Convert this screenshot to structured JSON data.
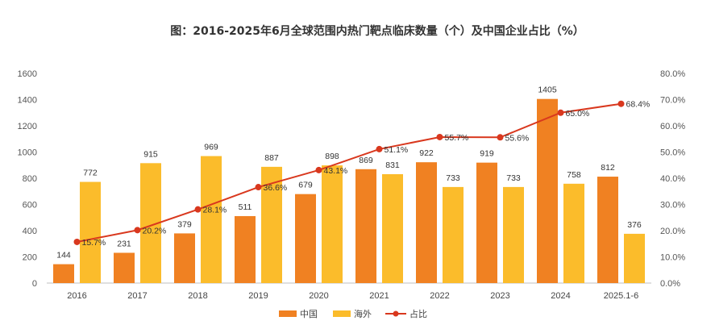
{
  "chart_data": {
    "type": "bar",
    "title": "图：2016-2025年6月全球范围内热门靶点临床数量（个）及中国企业占比（%）",
    "categories": [
      "2016",
      "2017",
      "2018",
      "2019",
      "2020",
      "2021",
      "2022",
      "2023",
      "2024",
      "2025.1-6"
    ],
    "series": [
      {
        "name": "中国",
        "type": "bar",
        "axis": "left",
        "color": "#F08122",
        "values": [
          144,
          231,
          379,
          511,
          679,
          869,
          922,
          919,
          1405,
          812
        ]
      },
      {
        "name": "海外",
        "type": "bar",
        "axis": "left",
        "color": "#FBBC2B",
        "values": [
          772,
          915,
          969,
          887,
          898,
          831,
          733,
          733,
          758,
          376
        ]
      },
      {
        "name": "占比",
        "type": "line",
        "axis": "right",
        "color": "#D9381E",
        "values": [
          15.7,
          20.2,
          28.1,
          36.6,
          43.1,
          51.1,
          55.7,
          55.6,
          65.0,
          68.4
        ],
        "labels": [
          "15.7%",
          "20.2%",
          "28.1%",
          "36.6%",
          "43.1%",
          "51.1%",
          "55.7%",
          "55.6%",
          "65.0%",
          "68.4%"
        ]
      }
    ],
    "ylim_left": [
      0,
      1600
    ],
    "yticks_left": [
      "0",
      "200",
      "400",
      "600",
      "800",
      "1000",
      "1200",
      "1400",
      "1600"
    ],
    "ylim_right": [
      0,
      80
    ],
    "yticks_right": [
      "0.0%",
      "10.0%",
      "20.0%",
      "30.0%",
      "40.0%",
      "50.0%",
      "60.0%",
      "70.0%",
      "80.0%"
    ],
    "grid": false,
    "legend_position": "bottom-center",
    "legend": [
      "中国",
      "海外",
      "占比"
    ]
  }
}
